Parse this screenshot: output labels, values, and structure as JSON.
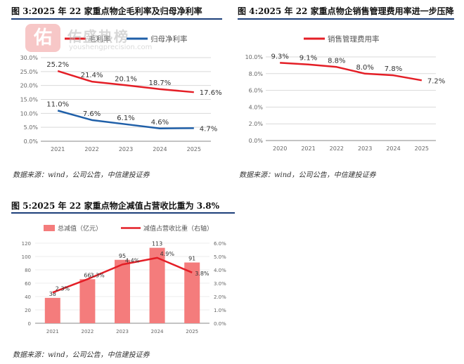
{
  "watermark": {
    "logo_char": "佑",
    "name": "佑盛热榜",
    "url": "youshengprecision.com"
  },
  "source_text": "数据来源：wind，公司公告，中信建投证券",
  "colors": {
    "red": "#e41e26",
    "blue": "#1f5fa8",
    "bar": "#f47c7c",
    "grid": "#d9d9d9",
    "axis": "#888888",
    "rule": "#1d3f7a"
  },
  "chart_data": [
    {
      "id": "fig3",
      "type": "line",
      "title": "图 3:2025 年 22 家重点物企毛利率及归母净利率",
      "x": [
        "2021",
        "2022",
        "2023",
        "2024",
        "2025"
      ],
      "y_ticks": [
        "0.0%",
        "5.0%",
        "10.0%",
        "15.0%",
        "20.0%",
        "25.0%",
        "30.0%"
      ],
      "ylim": [
        0,
        30
      ],
      "series": [
        {
          "name": "毛利率",
          "color": "#e41e26",
          "values": [
            25.2,
            21.4,
            20.1,
            18.7,
            17.6
          ],
          "labels": [
            "25.2%",
            "21.4%",
            "20.1%",
            "18.7%",
            "17.6%"
          ]
        },
        {
          "name": "归母净利率",
          "color": "#1f5fa8",
          "values": [
            11.0,
            7.6,
            6.1,
            4.6,
            4.7
          ],
          "labels": [
            "11.0%",
            "7.6%",
            "6.1%",
            "4.6%",
            "4.7%"
          ]
        }
      ],
      "legend": "top"
    },
    {
      "id": "fig4",
      "type": "line",
      "title": "图 4:2025 年 22 家重点物企销售管理费用率进一步压降",
      "x": [
        "2020",
        "2021",
        "2022",
        "2023",
        "2024",
        "2025"
      ],
      "y_ticks": [
        "0.0%",
        "2.0%",
        "4.0%",
        "6.0%",
        "8.0%",
        "10.0%"
      ],
      "ylim": [
        0,
        10
      ],
      "series": [
        {
          "name": "销售管理费用率",
          "color": "#e41e26",
          "values": [
            9.3,
            9.1,
            8.8,
            8.0,
            7.8,
            7.2
          ],
          "labels": [
            "9.3%",
            "9.1%",
            "8.8%",
            "8.0%",
            "7.8%",
            "7.2%"
          ]
        }
      ],
      "legend": "top"
    },
    {
      "id": "fig5",
      "type": "bar",
      "title": "图 5:2025 年 22 家重点物企减值占营收比重为 3.8%",
      "categories": [
        "2021",
        "2022",
        "2023",
        "2024",
        "2025"
      ],
      "y_ticks_left": [
        "0",
        "20",
        "40",
        "60",
        "80",
        "100",
        "120"
      ],
      "ylim_left": [
        0,
        120
      ],
      "y_ticks_right": [
        "0.0%",
        "1.0%",
        "2.0%",
        "3.0%",
        "4.0%",
        "5.0%",
        "6.0%"
      ],
      "ylim_right": [
        0,
        6
      ],
      "series": [
        {
          "name": "总减值（亿元）",
          "kind": "bar",
          "axis": "left",
          "color": "#f47c7c",
          "values": [
            38,
            66,
            95,
            113,
            91
          ],
          "labels": [
            "38",
            "66",
            "95",
            "113",
            "91"
          ]
        },
        {
          "name": "减值占营收比重（右轴）",
          "kind": "line",
          "axis": "right",
          "color": "#e41e26",
          "values": [
            2.3,
            3.3,
            4.4,
            4.9,
            3.8
          ],
          "labels": [
            "2.3%",
            "3.3%",
            "4.4%",
            "4.9%",
            "3.8%"
          ]
        }
      ],
      "legend": "top"
    }
  ]
}
